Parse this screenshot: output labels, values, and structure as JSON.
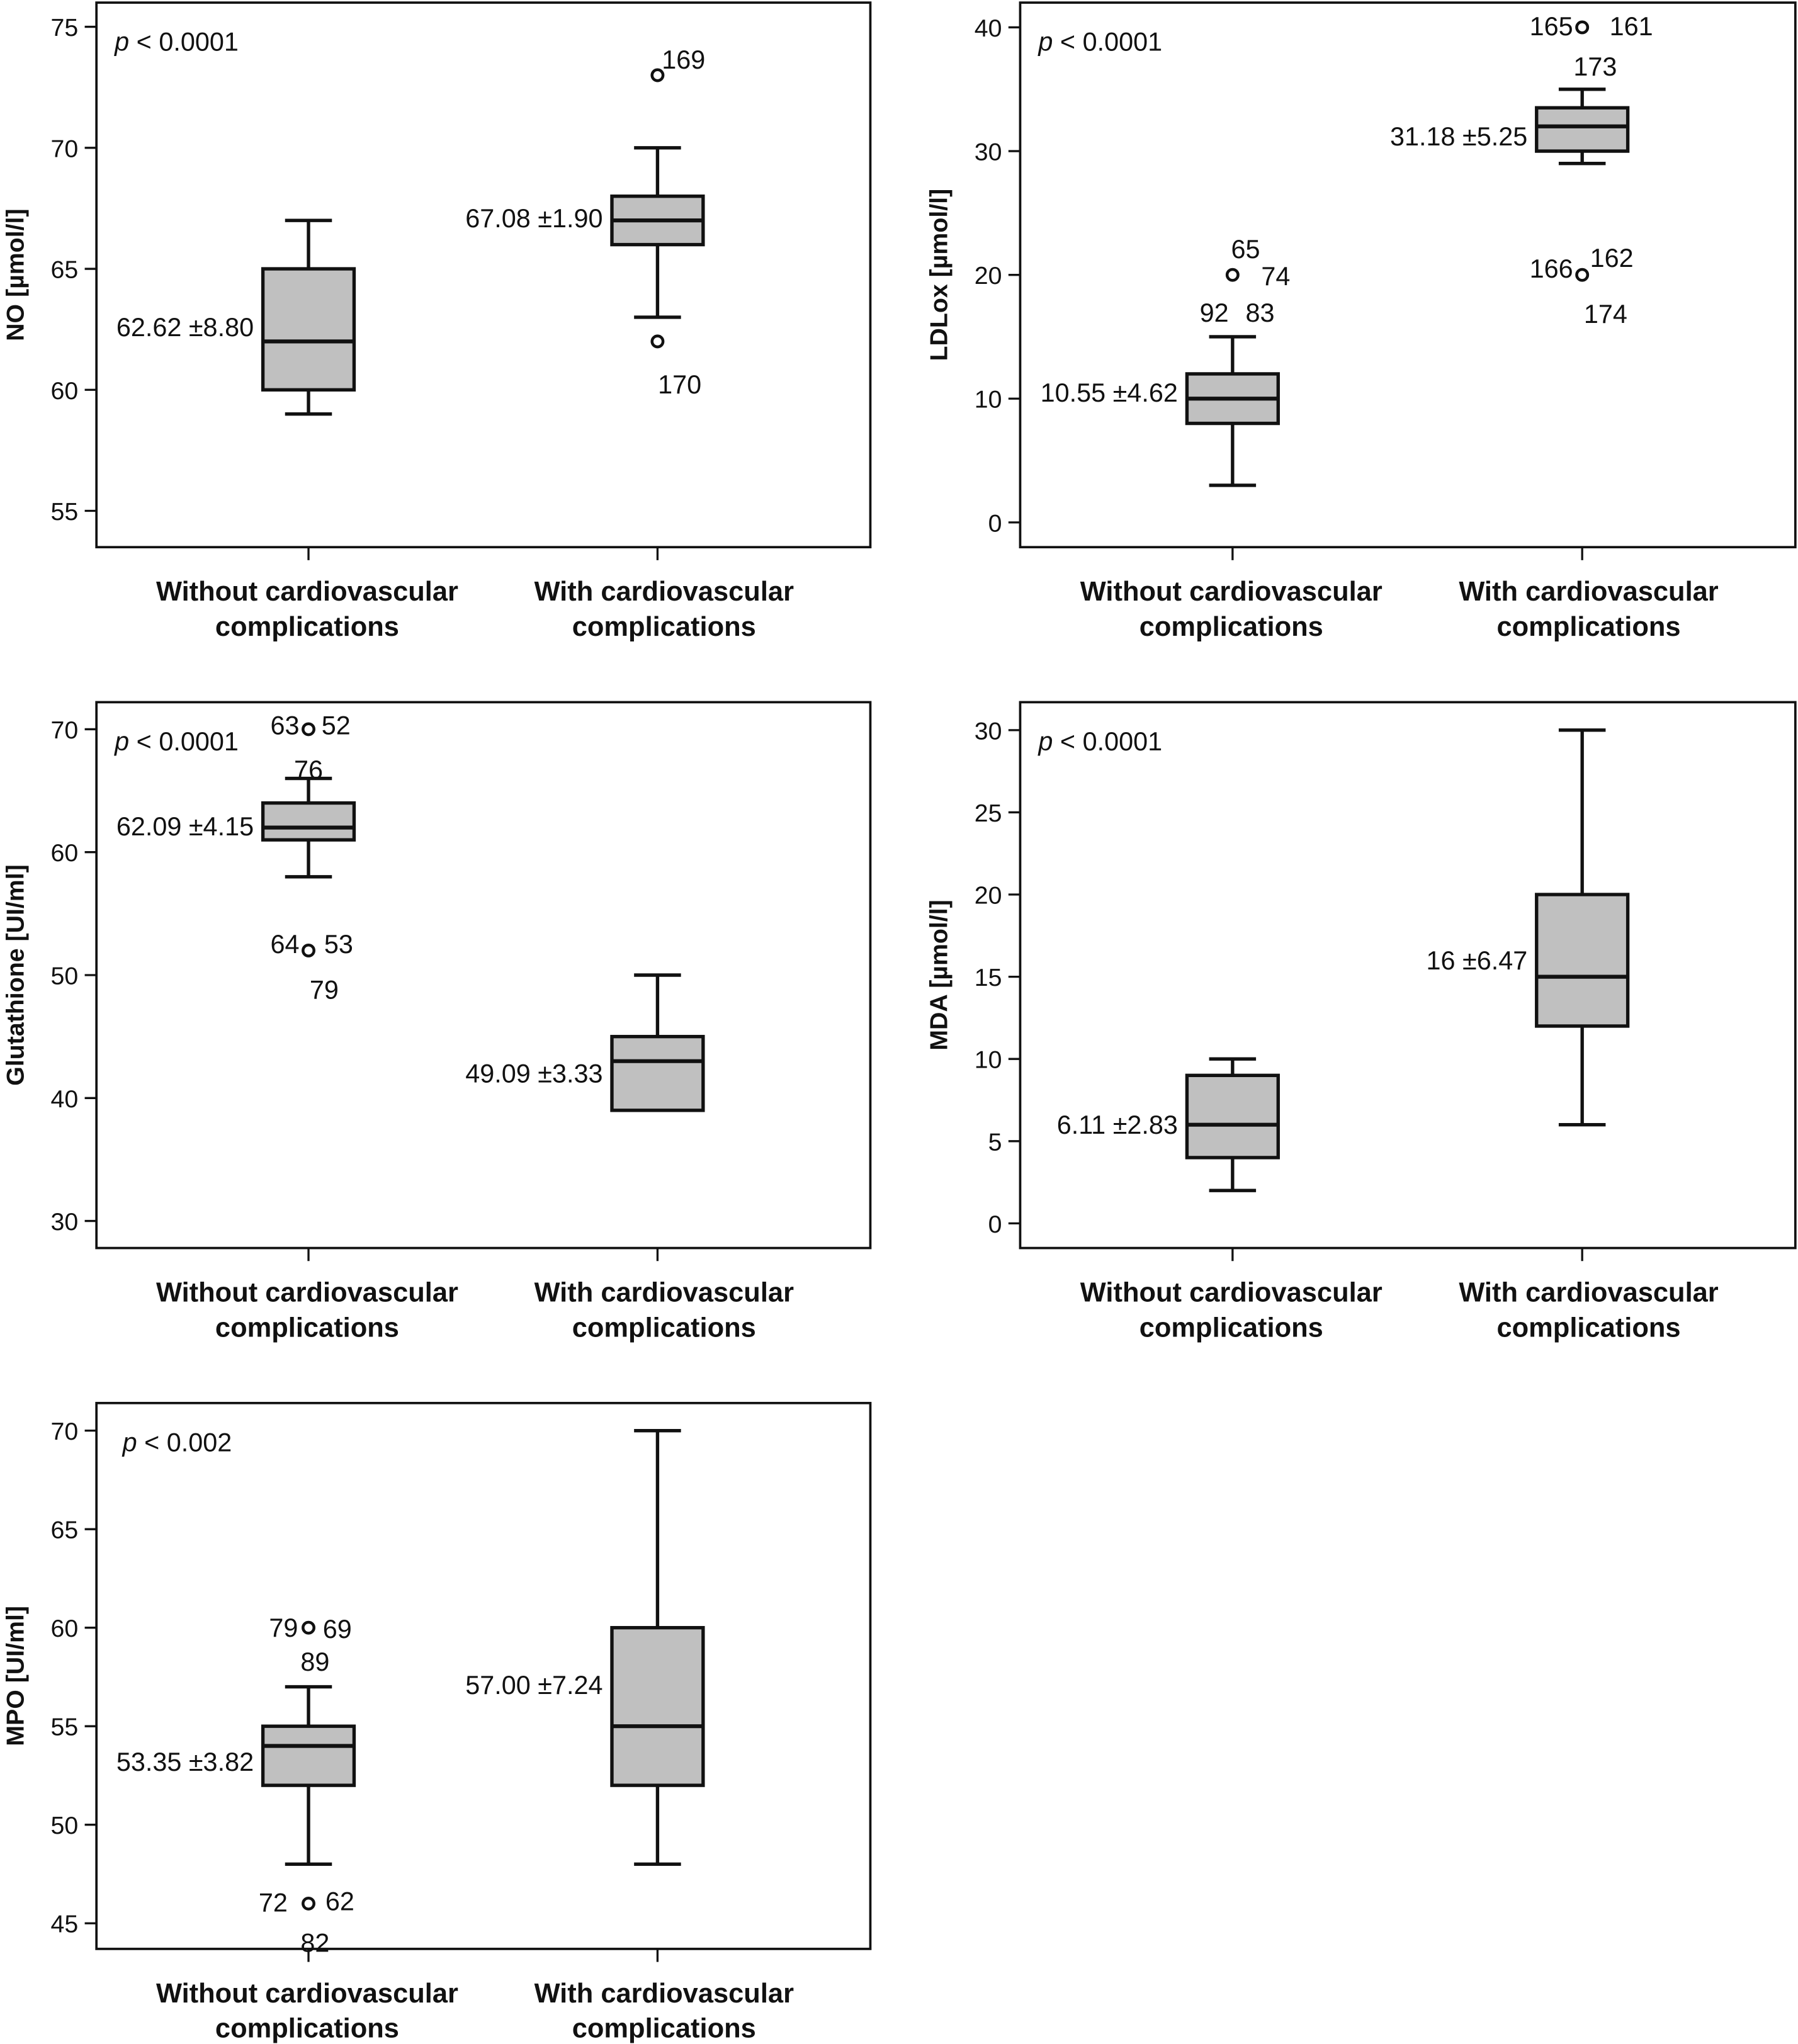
{
  "chart_data": [
    {
      "type": "box",
      "ylabel": "NO [µmol/l]",
      "annotation": "p < 0.0001",
      "yticks": [
        55,
        60,
        65,
        70,
        75
      ],
      "ylim": [
        53.5,
        76
      ],
      "categories": [
        "Without cardiovascular complications",
        "With cardiovascular complications"
      ],
      "groups": [
        {
          "whisker_low": 59,
          "q1": 60,
          "median": 62,
          "q3": 65,
          "whisker_high": 67,
          "mean_sd_label": "62.62 ±8.80",
          "outliers": []
        },
        {
          "whisker_low": 63,
          "q1": 66,
          "median": 67,
          "q3": 68,
          "whisker_high": 70,
          "mean_sd_label": "67.08 ±1.90",
          "outliers": [
            {
              "value": 73,
              "labels": [
                "169"
              ]
            },
            {
              "value": 62,
              "labels": [
                "170"
              ]
            }
          ]
        }
      ]
    },
    {
      "type": "box",
      "ylabel": "LDLox [µmol/l]",
      "annotation": "p < 0.0001",
      "yticks": [
        0,
        10,
        20,
        30,
        40
      ],
      "ylim": [
        -2,
        42
      ],
      "categories": [
        "Without cardiovascular complications",
        "With cardiovascular complications"
      ],
      "groups": [
        {
          "whisker_low": 3,
          "q1": 8,
          "median": 10,
          "q3": 12,
          "whisker_high": 15,
          "mean_sd_label": "10.55 ±4.62",
          "outliers": [
            {
              "value": 20,
              "labels": [
                "65",
                "74",
                "92",
                "83"
              ]
            }
          ]
        },
        {
          "whisker_low": 29,
          "q1": 30,
          "median": 32,
          "q3": 33.5,
          "whisker_high": 35,
          "mean_sd_label": "31.18 ±5.25",
          "outliers": [
            {
              "value": 40,
              "labels": [
                "165",
                "161",
                "173"
              ]
            },
            {
              "value": 20,
              "labels": [
                "166",
                "162",
                "174"
              ]
            }
          ]
        }
      ]
    },
    {
      "type": "box",
      "ylabel": "Glutathione [UI/ml]",
      "annotation": "p < 0.0001",
      "yticks": [
        30,
        40,
        50,
        60,
        70
      ],
      "ylim": [
        27.8,
        72.2
      ],
      "categories": [
        "Without cardiovascular complications",
        "With cardiovascular complications"
      ],
      "groups": [
        {
          "whisker_low": 58,
          "q1": 61,
          "median": 62,
          "q3": 64,
          "whisker_high": 66,
          "mean_sd_label": "62.09 ±4.15",
          "outliers": [
            {
              "value": 70,
              "labels": [
                "63",
                "52",
                "76"
              ]
            },
            {
              "value": 52,
              "labels": [
                "64",
                "53",
                "79"
              ]
            }
          ]
        },
        {
          "whisker_low": 39,
          "q1": 39,
          "median": 43,
          "q3": 45,
          "whisker_high": 50,
          "mean_sd_label": "49.09 ±3.33",
          "outliers": []
        }
      ]
    },
    {
      "type": "box",
      "ylabel": "MDA [µmol/l]",
      "annotation": "p < 0.0001",
      "yticks": [
        0,
        5,
        10,
        15,
        20,
        25,
        30
      ],
      "ylim": [
        -1.5,
        31.7
      ],
      "categories": [
        "Without cardiovascular complications",
        "With cardiovascular complications"
      ],
      "groups": [
        {
          "whisker_low": 2,
          "q1": 4,
          "median": 6,
          "q3": 9,
          "whisker_high": 10,
          "mean_sd_label": "6.11 ±2.83",
          "outliers": []
        },
        {
          "whisker_low": 6,
          "q1": 12,
          "median": 15,
          "q3": 20,
          "whisker_high": 30,
          "mean_sd_label": "16 ±6.47",
          "outliers": []
        }
      ]
    },
    {
      "type": "box",
      "ylabel": "MPO [UI/ml]",
      "annotation": "p < 0.002",
      "yticks": [
        45,
        50,
        55,
        60,
        65,
        70
      ],
      "ylim": [
        43.7,
        71.4
      ],
      "categories": [
        "Without cardiovascular complications",
        "With cardiovascular complications"
      ],
      "groups": [
        {
          "whisker_low": 48,
          "q1": 52,
          "median": 54,
          "q3": 55,
          "whisker_high": 57,
          "mean_sd_label": "53.35 ±3.82",
          "outliers": [
            {
              "value": 60,
              "labels": [
                "79",
                "69",
                "89"
              ]
            },
            {
              "value": 46,
              "labels": [
                "72",
                "62",
                "82"
              ]
            }
          ]
        },
        {
          "whisker_low": 48,
          "q1": 52,
          "median": 55,
          "q3": 60,
          "whisker_high": 70,
          "mean_sd_label": "57.00 ±7.24",
          "outliers": []
        }
      ]
    }
  ]
}
